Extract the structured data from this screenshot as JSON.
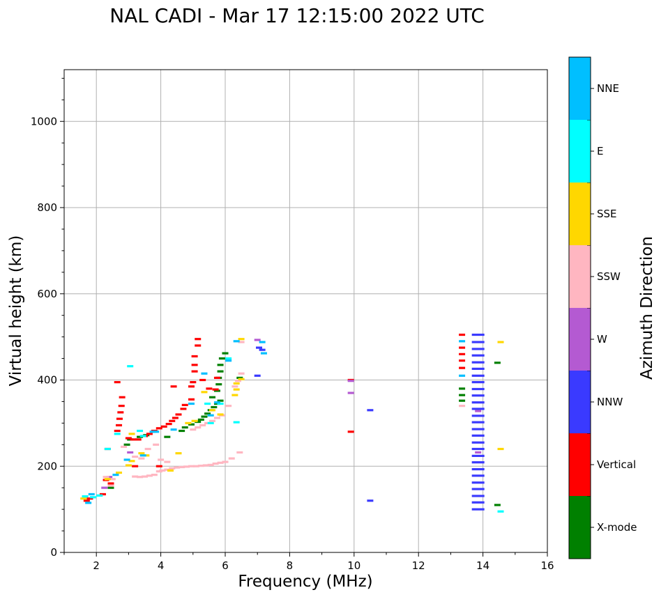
{
  "chart_data": {
    "type": "scatter",
    "title": "NAL CADI - Mar 17 12:15:00 2022 UTC",
    "xlabel": "Frequency (MHz)",
    "ylabel": "Virtual height (km)",
    "xlim": [
      1,
      16
    ],
    "ylim": [
      0,
      1120
    ],
    "xticks": [
      2,
      4,
      6,
      8,
      10,
      12,
      14,
      16
    ],
    "yticks": [
      0,
      200,
      400,
      600,
      800,
      1000
    ],
    "grid": true,
    "colorbar": {
      "label": "Azimuth Direction",
      "categories": [
        "X-mode",
        "Vertical",
        "NNW",
        "W",
        "SSW",
        "SSE",
        "E",
        "NNE"
      ],
      "colors": [
        "#008000",
        "#ff0000",
        "#3a3aff",
        "#b45ad2",
        "#ffb6c1",
        "#ffd700",
        "#00ffff",
        "#00bfff"
      ]
    },
    "series": [
      {
        "name": "X-mode",
        "points": [
          [
            2.45,
            150
          ],
          [
            2.95,
            250
          ],
          [
            3.05,
            262
          ],
          [
            3.35,
            268
          ],
          [
            3.55,
            272
          ],
          [
            4.2,
            268
          ],
          [
            4.65,
            282
          ],
          [
            4.75,
            290
          ],
          [
            4.95,
            297
          ],
          [
            5.15,
            303
          ],
          [
            5.25,
            308
          ],
          [
            5.35,
            315
          ],
          [
            5.45,
            322
          ],
          [
            5.55,
            330
          ],
          [
            5.65,
            337
          ],
          [
            5.75,
            345
          ],
          [
            5.85,
            352
          ],
          [
            5.6,
            360
          ],
          [
            5.75,
            375
          ],
          [
            5.8,
            390
          ],
          [
            5.8,
            405
          ],
          [
            5.85,
            420
          ],
          [
            5.85,
            435
          ],
          [
            5.9,
            450
          ],
          [
            6.0,
            462
          ],
          [
            6.45,
            405
          ],
          [
            13.35,
            352
          ],
          [
            13.35,
            365
          ],
          [
            13.35,
            380
          ],
          [
            14.45,
            440
          ],
          [
            14.45,
            110
          ]
        ]
      },
      {
        "name": "Vertical",
        "points": [
          [
            1.7,
            120
          ],
          [
            1.8,
            125
          ],
          [
            2.2,
            135
          ],
          [
            2.3,
            168
          ],
          [
            2.35,
            240
          ],
          [
            2.45,
            160
          ],
          [
            2.65,
            282
          ],
          [
            2.7,
            295
          ],
          [
            2.72,
            310
          ],
          [
            2.75,
            325
          ],
          [
            2.78,
            340
          ],
          [
            2.8,
            360
          ],
          [
            2.65,
            395
          ],
          [
            3.0,
            265
          ],
          [
            3.15,
            262
          ],
          [
            3.3,
            262
          ],
          [
            3.5,
            270
          ],
          [
            3.65,
            275
          ],
          [
            3.8,
            282
          ],
          [
            3.95,
            288
          ],
          [
            4.1,
            292
          ],
          [
            4.25,
            298
          ],
          [
            4.35,
            305
          ],
          [
            4.45,
            312
          ],
          [
            4.55,
            320
          ],
          [
            4.75,
            342
          ],
          [
            4.7,
            333
          ],
          [
            4.95,
            355
          ],
          [
            4.95,
            385
          ],
          [
            5.0,
            395
          ],
          [
            5.05,
            420
          ],
          [
            5.05,
            435
          ],
          [
            5.05,
            455
          ],
          [
            5.15,
            480
          ],
          [
            5.15,
            495
          ],
          [
            5.3,
            400
          ],
          [
            5.5,
            380
          ],
          [
            5.7,
            378
          ],
          [
            5.75,
            405
          ],
          [
            4.4,
            385
          ],
          [
            9.9,
            280
          ],
          [
            9.9,
            400
          ],
          [
            13.35,
            428
          ],
          [
            13.35,
            445
          ],
          [
            13.35,
            460
          ],
          [
            13.35,
            475
          ],
          [
            13.35,
            505
          ],
          [
            3.2,
            200
          ],
          [
            3.95,
            200
          ]
        ]
      },
      {
        "name": "NNW",
        "points": [
          [
            13.85,
            100
          ],
          [
            13.85,
            116
          ],
          [
            13.85,
            131
          ],
          [
            13.85,
            147
          ],
          [
            13.85,
            162
          ],
          [
            13.85,
            178
          ],
          [
            13.85,
            193
          ],
          [
            13.85,
            209
          ],
          [
            13.85,
            224
          ],
          [
            13.85,
            240
          ],
          [
            13.85,
            255
          ],
          [
            13.85,
            271
          ],
          [
            13.85,
            286
          ],
          [
            13.85,
            302
          ],
          [
            13.85,
            317
          ],
          [
            13.85,
            333
          ],
          [
            13.85,
            348
          ],
          [
            13.85,
            364
          ],
          [
            13.85,
            379
          ],
          [
            13.85,
            395
          ],
          [
            13.85,
            410
          ],
          [
            13.85,
            426
          ],
          [
            13.85,
            441
          ],
          [
            13.85,
            457
          ],
          [
            13.85,
            472
          ],
          [
            13.85,
            488
          ],
          [
            13.85,
            505
          ],
          [
            10.5,
            330
          ],
          [
            10.5,
            120
          ],
          [
            7.0,
            410
          ],
          [
            7.05,
            475
          ],
          [
            7.15,
            470
          ]
        ]
      },
      {
        "name": "W",
        "points": [
          [
            9.9,
            370
          ],
          [
            9.9,
            398
          ],
          [
            7.0,
            493
          ],
          [
            13.85,
            328
          ],
          [
            13.85,
            232
          ],
          [
            2.25,
            150
          ],
          [
            2.4,
            175
          ],
          [
            3.05,
            232
          ]
        ]
      },
      {
        "name": "SSW",
        "points": [
          [
            2.3,
            175
          ],
          [
            2.45,
            155
          ],
          [
            2.5,
            170
          ],
          [
            3.2,
            176
          ],
          [
            3.35,
            175
          ],
          [
            3.5,
            176
          ],
          [
            3.65,
            178
          ],
          [
            3.8,
            180
          ],
          [
            3.95,
            188
          ],
          [
            4.05,
            190
          ],
          [
            4.2,
            192
          ],
          [
            4.35,
            195
          ],
          [
            4.5,
            197
          ],
          [
            4.65,
            198
          ],
          [
            4.8,
            199
          ],
          [
            4.95,
            200
          ],
          [
            5.1,
            200
          ],
          [
            5.25,
            201
          ],
          [
            5.4,
            202
          ],
          [
            5.55,
            203
          ],
          [
            5.7,
            206
          ],
          [
            5.85,
            208
          ],
          [
            6.0,
            210
          ],
          [
            6.2,
            218
          ],
          [
            6.45,
            232
          ],
          [
            5.0,
            285
          ],
          [
            5.15,
            290
          ],
          [
            5.3,
            295
          ],
          [
            5.45,
            300
          ],
          [
            5.6,
            305
          ],
          [
            5.75,
            312
          ],
          [
            5.9,
            318
          ],
          [
            6.1,
            340
          ],
          [
            6.3,
            385
          ],
          [
            6.4,
            398
          ],
          [
            6.5,
            415
          ],
          [
            6.5,
            488
          ],
          [
            3.2,
            222
          ],
          [
            3.4,
            218
          ],
          [
            3.6,
            240
          ],
          [
            4.0,
            215
          ],
          [
            2.85,
            245
          ],
          [
            13.35,
            340
          ],
          [
            3.85,
            250
          ],
          [
            4.2,
            210
          ]
        ]
      },
      {
        "name": "SSE",
        "points": [
          [
            2.35,
            170
          ],
          [
            2.7,
            185
          ],
          [
            3.0,
            202
          ],
          [
            3.1,
            212
          ],
          [
            3.4,
            230
          ],
          [
            3.55,
            225
          ],
          [
            4.55,
            230
          ],
          [
            4.3,
            190
          ],
          [
            4.85,
            300
          ],
          [
            5.05,
            305
          ],
          [
            5.35,
            372
          ],
          [
            5.6,
            330
          ],
          [
            5.85,
            320
          ],
          [
            6.3,
            365
          ],
          [
            6.35,
            378
          ],
          [
            6.35,
            392
          ],
          [
            6.5,
            402
          ],
          [
            6.5,
            495
          ],
          [
            14.55,
            488
          ],
          [
            14.55,
            240
          ],
          [
            1.6,
            125
          ],
          [
            3.1,
            275
          ]
        ]
      },
      {
        "name": "E",
        "points": [
          [
            1.65,
            130
          ],
          [
            1.9,
            128
          ],
          [
            2.1,
            132
          ],
          [
            2.35,
            240
          ],
          [
            3.05,
            432
          ],
          [
            3.45,
            270
          ],
          [
            3.35,
            282
          ],
          [
            5.55,
            300
          ],
          [
            5.85,
            345
          ],
          [
            6.35,
            302
          ],
          [
            6.1,
            450
          ],
          [
            5.45,
            345
          ],
          [
            14.55,
            95
          ],
          [
            2.65,
            275
          ]
        ]
      },
      {
        "name": "NNE",
        "points": [
          [
            1.75,
            115
          ],
          [
            1.85,
            135
          ],
          [
            2.6,
            180
          ],
          [
            2.95,
            215
          ],
          [
            3.45,
            225
          ],
          [
            3.75,
            280
          ],
          [
            3.85,
            280
          ],
          [
            4.4,
            285
          ],
          [
            4.95,
            345
          ],
          [
            5.35,
            415
          ],
          [
            5.55,
            318
          ],
          [
            5.75,
            348
          ],
          [
            7.15,
            488
          ],
          [
            7.2,
            462
          ],
          [
            6.1,
            445
          ],
          [
            6.35,
            490
          ],
          [
            13.35,
            490
          ],
          [
            13.35,
            410
          ]
        ]
      }
    ]
  }
}
